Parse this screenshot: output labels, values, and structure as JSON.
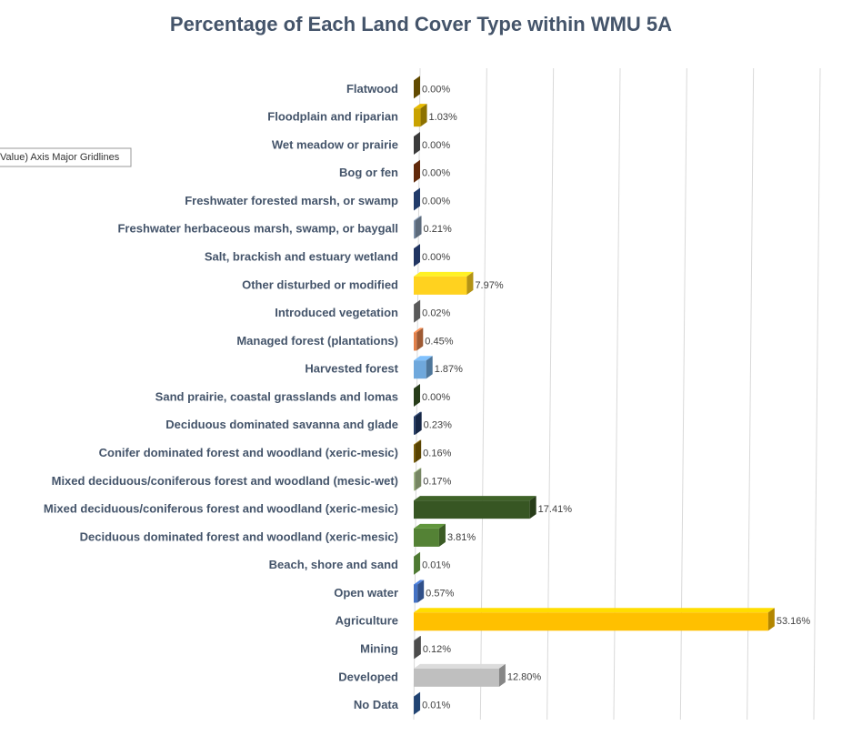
{
  "chart_data": {
    "type": "bar",
    "orientation": "horizontal",
    "title": "Percentage of Each Land Cover Type within WMU 5A",
    "tooltip": "Value) Axis Major Gridlines",
    "categories": [
      "Flatwood",
      "Floodplain and riparian",
      "Wet meadow or prairie",
      "Bog or fen",
      "Freshwater forested  marsh, or swamp",
      "Freshwater herbaceous marsh, swamp, or baygall",
      "Salt, brackish and estuary wetland",
      "Other disturbed or modified",
      "Introduced vegetation",
      "Managed forest (plantations)",
      "Harvested forest",
      "Sand prairie, coastal grasslands and lomas",
      "Deciduous dominated savanna and glade",
      "Conifer dominated forest and woodland (xeric-mesic)",
      "Mixed deciduous/coniferous forest and woodland (mesic-wet)",
      "Mixed deciduous/coniferous forest and woodland  (xeric-mesic)",
      "Deciduous dominated forest and woodland (xeric-mesic)",
      "Beach, shore and sand",
      "Open water",
      "Agriculture",
      "Mining",
      "Developed",
      "No Data"
    ],
    "values": [
      0.0,
      1.03,
      0.0,
      0.0,
      0.0,
      0.21,
      0.0,
      7.97,
      0.02,
      0.45,
      1.87,
      0.0,
      0.23,
      0.16,
      0.17,
      17.41,
      3.81,
      0.01,
      0.57,
      53.16,
      0.12,
      12.8,
      0.01
    ],
    "value_labels": [
      "0.00%",
      "1.03%",
      "0.00%",
      "0.00%",
      "0.00%",
      "0.21%",
      "0.00%",
      "7.97%",
      "0.02%",
      "0.45%",
      "1.87%",
      "0.00%",
      "0.23%",
      "0.16%",
      "0.17%",
      "17.41%",
      "3.81%",
      "0.01%",
      "0.57%",
      "53.16%",
      "0.12%",
      "12.80%",
      "0.01%"
    ],
    "colors": [
      "#8a6a00",
      "#c9a200",
      "#555555",
      "#8b3a0e",
      "#2f5597",
      "#8497b0",
      "#2f4b8c",
      "#ffd21f",
      "#7f7f7f",
      "#e2804a",
      "#6fa8dc",
      "#375623",
      "#1f3864",
      "#7f5f00",
      "#a9c08c",
      "#375623",
      "#548235",
      "#70ad47",
      "#4472c4",
      "#ffc000",
      "#6d6d6d",
      "#bfbfbf",
      "#2e5fa3"
    ],
    "xlim": [
      0,
      60
    ],
    "xticks": [
      0,
      10,
      20,
      30,
      40,
      50,
      60
    ],
    "grid": true
  }
}
